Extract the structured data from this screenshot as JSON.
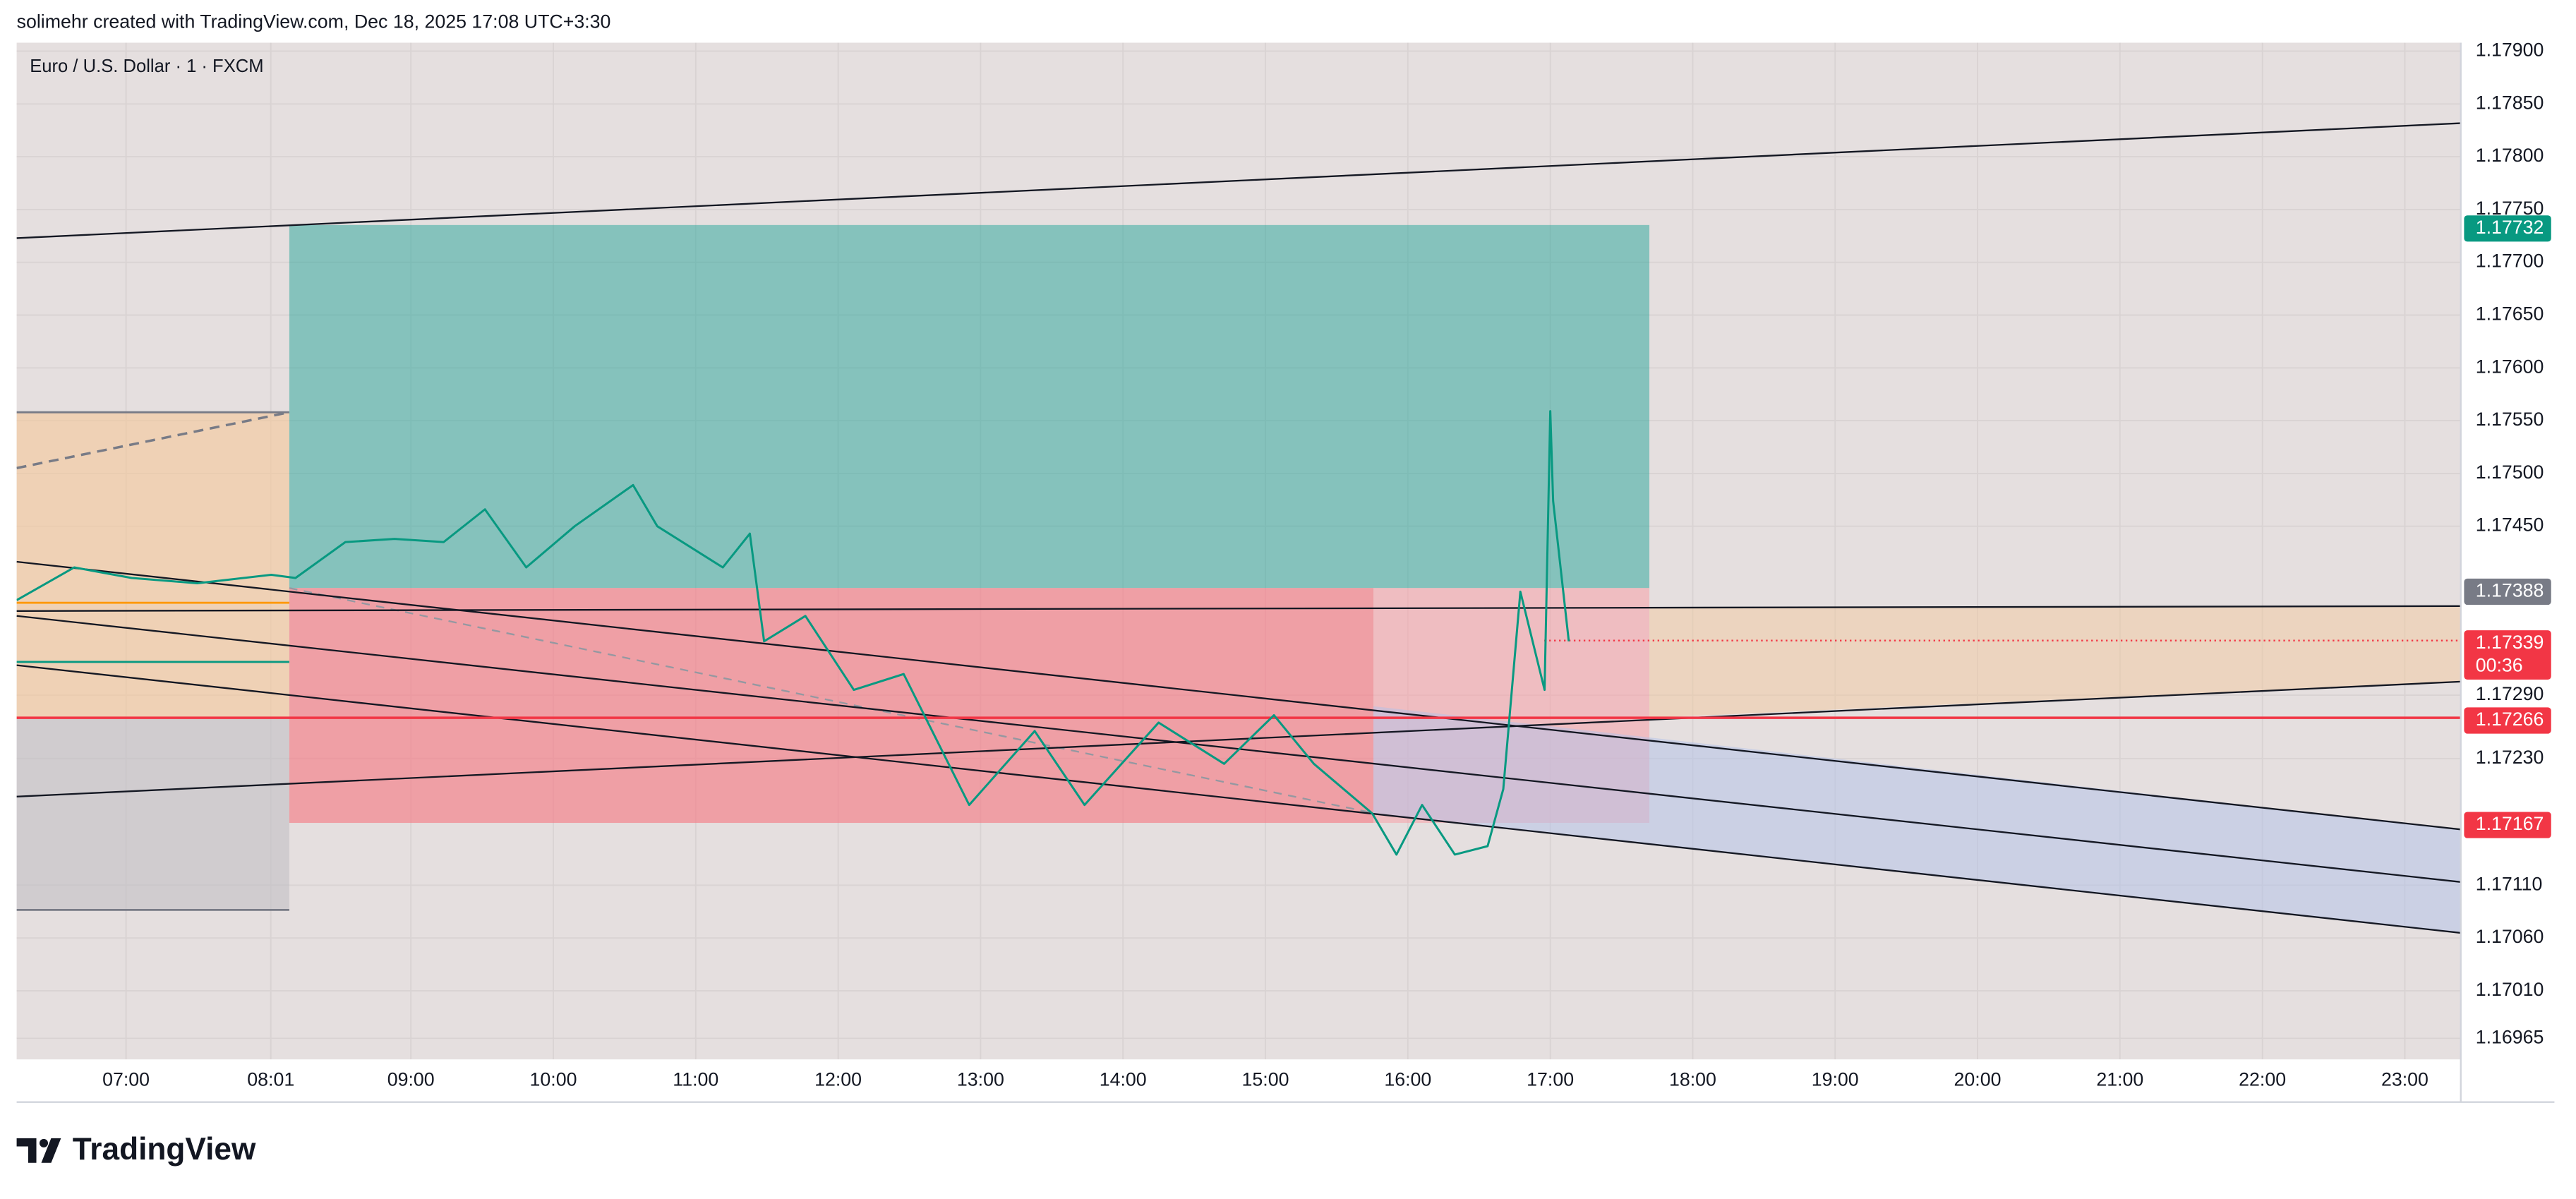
{
  "header": {
    "text": "solimehr created with TradingView.com, Dec 18, 2025 17:08 UTC+3:30"
  },
  "footer": {
    "brand": "TradingView"
  },
  "chart_data": {
    "type": "line",
    "title": "Euro / U.S. Dollar · 1 · FXCM",
    "x": [
      6.232,
      6.636,
      7.04,
      7.5,
      8.02,
      8.19,
      8.54,
      8.885,
      9.23,
      9.52,
      9.81,
      10.15,
      10.56,
      10.73,
      11.19,
      11.38,
      11.48,
      11.77,
      12.11,
      12.46,
      12.92,
      13.38,
      13.73,
      14.25,
      14.71,
      15.06,
      15.34,
      15.75,
      15.92,
      16.1,
      16.33,
      16.56,
      16.67,
      16.79,
      16.96,
      17.0,
      17.02,
      17.13
    ],
    "series": [
      {
        "name": "EURUSD",
        "color": "#089981",
        "values": [
          1.1738,
          1.17411,
          1.17401,
          1.17396,
          1.17404,
          1.17401,
          1.17435,
          1.17438,
          1.17435,
          1.17466,
          1.17411,
          1.1745,
          1.17489,
          1.1745,
          1.17411,
          1.17443,
          1.17341,
          1.17365,
          1.17295,
          1.1731,
          1.17186,
          1.17256,
          1.17186,
          1.17264,
          1.17225,
          1.17271,
          1.17225,
          1.17178,
          1.17139,
          1.17186,
          1.17139,
          1.17147,
          1.17201,
          1.17388,
          1.17295,
          1.17559,
          1.17474,
          1.17341
        ]
      }
    ],
    "xlim": [
      6.232,
      23.393
    ],
    "ylim": [
      1.16945,
      1.17908
    ],
    "xticks": [
      {
        "value": 7,
        "label": "07:00"
      },
      {
        "value": 8.0167,
        "label": "08:01"
      },
      {
        "value": 9,
        "label": "09:00"
      },
      {
        "value": 10,
        "label": "10:00"
      },
      {
        "value": 11,
        "label": "11:00"
      },
      {
        "value": 12,
        "label": "12:00"
      },
      {
        "value": 13,
        "label": "13:00"
      },
      {
        "value": 14,
        "label": "14:00"
      },
      {
        "value": 15,
        "label": "15:00"
      },
      {
        "value": 16,
        "label": "16:00"
      },
      {
        "value": 17,
        "label": "17:00"
      },
      {
        "value": 18,
        "label": "18:00"
      },
      {
        "value": 19,
        "label": "19:00"
      },
      {
        "value": 20,
        "label": "20:00"
      },
      {
        "value": 21,
        "label": "21:00"
      },
      {
        "value": 22,
        "label": "22:00"
      },
      {
        "value": 23,
        "label": "23:00"
      }
    ],
    "yticks": [
      {
        "value": 1.179,
        "label": "1.17900"
      },
      {
        "value": 1.1785,
        "label": "1.17850"
      },
      {
        "value": 1.178,
        "label": "1.17800"
      },
      {
        "value": 1.1775,
        "label": "1.17750"
      },
      {
        "value": 1.177,
        "label": "1.17700"
      },
      {
        "value": 1.1765,
        "label": "1.17650"
      },
      {
        "value": 1.176,
        "label": "1.17600"
      },
      {
        "value": 1.1755,
        "label": "1.17550"
      },
      {
        "value": 1.175,
        "label": "1.17500"
      },
      {
        "value": 1.1745,
        "label": "1.17450"
      },
      {
        "value": 1.1729,
        "label": "1.17290"
      },
      {
        "value": 1.1723,
        "label": "1.17230"
      },
      {
        "value": 1.1711,
        "label": "1.17110"
      },
      {
        "value": 1.1706,
        "label": "1.17060"
      },
      {
        "value": 1.1701,
        "label": "1.17010"
      },
      {
        "value": 1.16965,
        "label": "1.16965"
      }
    ],
    "grid": true,
    "price_tags": [
      {
        "value": 1.17732,
        "color": "#089981"
      },
      {
        "value": 1.17388,
        "color": "#787b86"
      },
      {
        "value": 1.17339,
        "color": "#f23645",
        "countdown": "00:36"
      },
      {
        "value": 1.17266,
        "color": "#f23645"
      },
      {
        "value": 1.17167,
        "color": "#f23645"
      }
    ]
  }
}
